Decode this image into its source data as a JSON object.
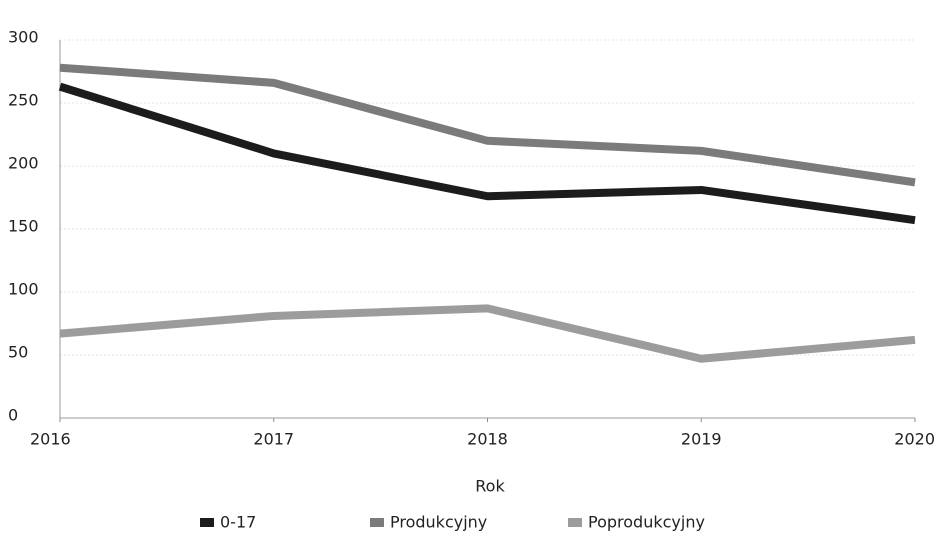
{
  "chart_data": {
    "type": "line",
    "x": [
      2016,
      2017,
      2018,
      2019,
      2020
    ],
    "xlim": [
      2016,
      2020
    ],
    "xticks": [
      2016,
      2017,
      2018,
      2019,
      2020
    ],
    "ylim": [
      0,
      300
    ],
    "yticks": [
      0,
      50,
      100,
      150,
      200,
      250,
      300
    ],
    "x_label": "Rok",
    "grid": true,
    "legend": "bottom",
    "series": [
      {
        "name": "0-17",
        "color": "#1c1c1c",
        "values": [
          263,
          210,
          176,
          181,
          157
        ]
      },
      {
        "name": "Produkcyjny",
        "color": "#7b7b7b",
        "values": [
          278,
          266,
          220,
          212,
          187
        ]
      },
      {
        "name": "Poprodukcyjny",
        "color": "#9c9c9c",
        "values": [
          67,
          81,
          87,
          47,
          62
        ]
      }
    ]
  }
}
